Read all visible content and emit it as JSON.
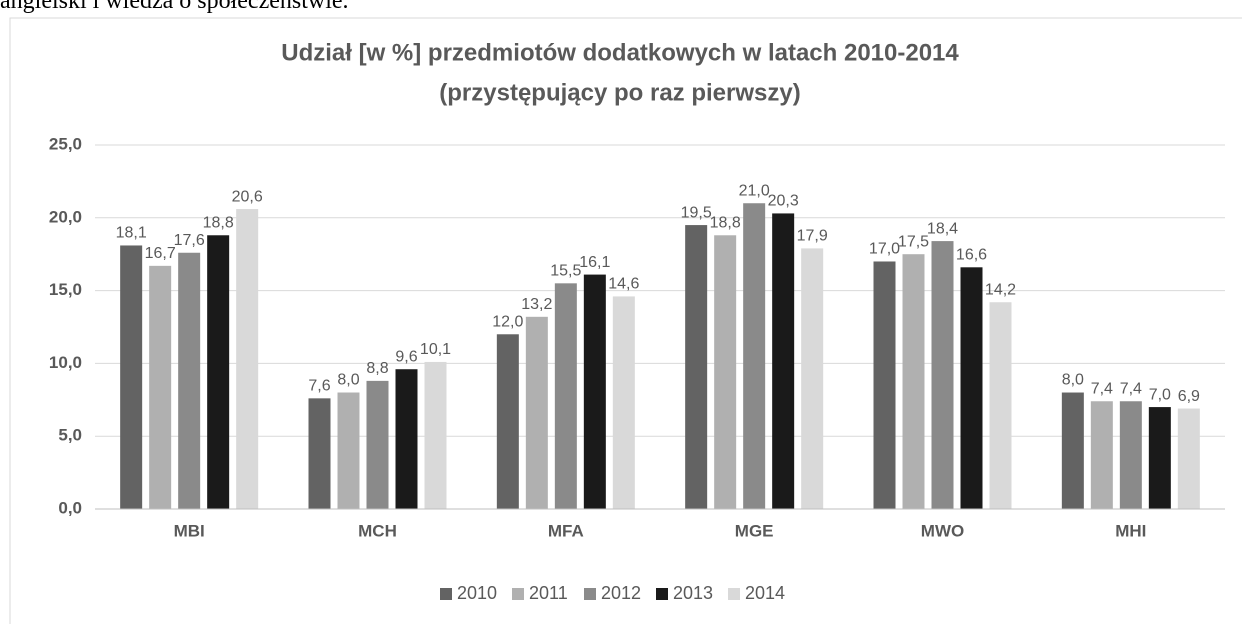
{
  "document_text": "angielski i wiedza o społeczeństwie.",
  "chart_data": {
    "type": "bar",
    "title": "Udział [w %] przedmiotów dodatkowych w latach 2010-2014",
    "subtitle": "(przystępujący po raz pierwszy)",
    "categories": [
      "MBI",
      "MCH",
      "MFA",
      "MGE",
      "MWO",
      "MHI"
    ],
    "series": [
      {
        "name": "2010",
        "color": "#636363",
        "values": [
          18.1,
          7.6,
          12.0,
          19.5,
          17.0,
          8.0
        ],
        "value_labels": [
          "18,1",
          "7,6",
          "12,0",
          "19,5",
          "17,0",
          "8,0"
        ]
      },
      {
        "name": "2011",
        "color": "#b0b0b0",
        "values": [
          16.7,
          8.0,
          13.2,
          18.8,
          17.5,
          7.4
        ],
        "value_labels": [
          "16,7",
          "8,0",
          "13,2",
          "18,8",
          "17,5",
          "7,4"
        ]
      },
      {
        "name": "2012",
        "color": "#8a8a8a",
        "values": [
          17.6,
          8.8,
          15.5,
          21.0,
          18.4,
          7.4
        ],
        "value_labels": [
          "17,6",
          "8,8",
          "15,5",
          "21,0",
          "18,4",
          "7,4"
        ]
      },
      {
        "name": "2013",
        "color": "#1a1a1a",
        "values": [
          18.8,
          9.6,
          16.1,
          20.3,
          16.6,
          7.0
        ],
        "value_labels": [
          "18,8",
          "9,6",
          "16,1",
          "20,3",
          "16,6",
          "7,0"
        ]
      },
      {
        "name": "2014",
        "color": "#d9d9d9",
        "values": [
          20.6,
          10.1,
          14.6,
          17.9,
          14.2,
          6.9
        ],
        "value_labels": [
          "20,6",
          "10,1",
          "14,6",
          "17,9",
          "14,2",
          "6,9"
        ]
      }
    ],
    "ylim": [
      0,
      25
    ],
    "yticks": [
      {
        "value": 0,
        "label": "0,0"
      },
      {
        "value": 5,
        "label": "5,0"
      },
      {
        "value": 10,
        "label": "10,0"
      },
      {
        "value": 15,
        "label": "15,0"
      },
      {
        "value": 20,
        "label": "20,0"
      },
      {
        "value": 25,
        "label": "25,0"
      }
    ],
    "grid": true,
    "legend": "bottom"
  }
}
